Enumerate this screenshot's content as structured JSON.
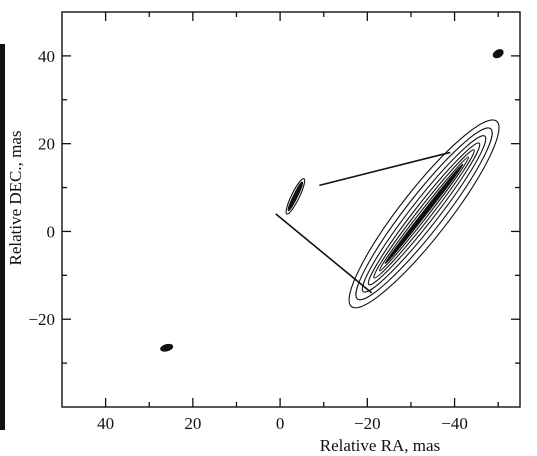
{
  "chart_data": {
    "type": "contour",
    "xlabel": "Relative RA, mas",
    "ylabel": "Relative DEC., mas",
    "xlim": [
      50,
      -55
    ],
    "ylim": [
      -40,
      50
    ],
    "xticks": [
      40,
      20,
      0,
      -20,
      -40
    ],
    "xtick_labels": [
      "40",
      "20",
      "0",
      "−20",
      "−40"
    ],
    "yticks": [
      40,
      20,
      0,
      -20
    ],
    "ytick_labels": [
      "40",
      "20",
      "0",
      "−20"
    ],
    "grid": false,
    "components": [
      {
        "component": "bright",
        "center_ra": -33,
        "center_dec": 4,
        "half_length": 27,
        "half_width_levels": [
          5.5,
          4.2,
          3.1,
          2.2,
          1.5,
          0.9,
          0.45
        ],
        "angle_deg": 52
      },
      {
        "component": "small-elongated",
        "center_ra": -3.5,
        "center_dec": 8,
        "half_length": 4.5,
        "half_width_levels": [
          0.9,
          0.45
        ],
        "angle_deg": 64
      },
      {
        "component": "blob-upper-right",
        "center_ra": -50,
        "center_dec": 40.5,
        "half_length": 1.2,
        "half_width_levels": [
          0.8
        ],
        "angle_deg": 30
      },
      {
        "component": "blob-lower-left",
        "center_ra": 26,
        "center_dec": -26.5,
        "half_length": 1.4,
        "half_width_levels": [
          0.7
        ],
        "angle_deg": 15
      }
    ],
    "connector_lines": [
      {
        "from_ra": -9,
        "from_dec": 10.5,
        "to_ra": -39,
        "to_dec": 18
      },
      {
        "from_ra": 1,
        "from_dec": 4,
        "to_ra": -21,
        "to_dec": -14
      }
    ]
  }
}
